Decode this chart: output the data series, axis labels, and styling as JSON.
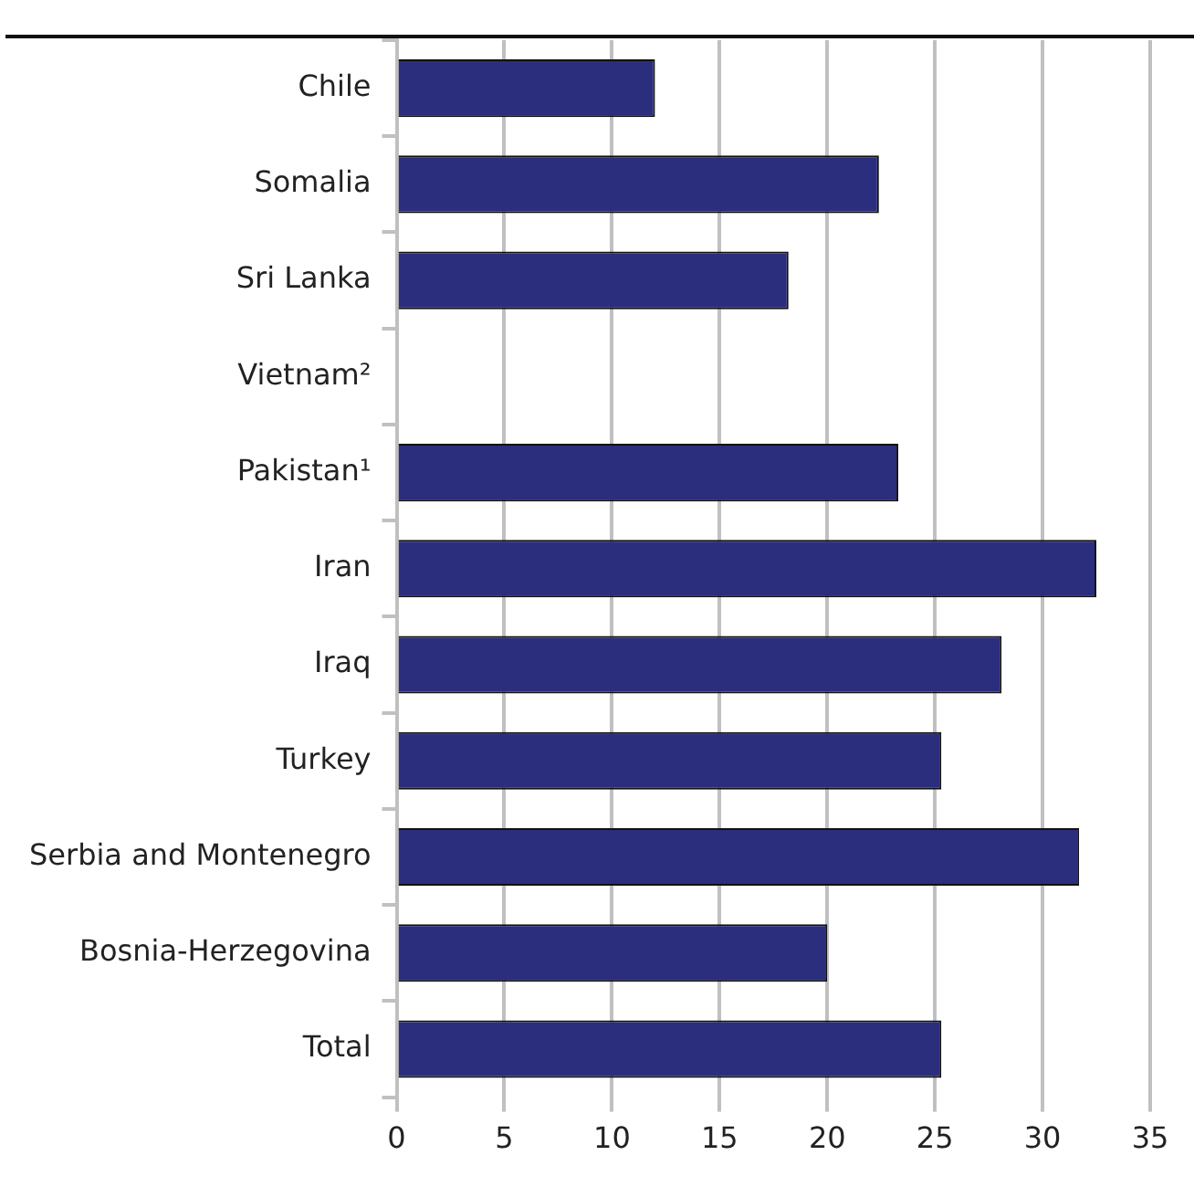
{
  "chart_data": {
    "type": "bar",
    "orientation": "horizontal",
    "categories": [
      "Chile",
      "Somalia",
      "Sri Lanka",
      "Vietnam²",
      "Pakistan¹",
      "Iran",
      "Iraq",
      "Turkey",
      "Serbia and Montenegro",
      "Bosnia-Herzegovina",
      "Total"
    ],
    "values": [
      12.0,
      22.4,
      18.2,
      null,
      23.3,
      32.5,
      28.1,
      25.3,
      31.7,
      20.0,
      25.3
    ],
    "color": "#2a2e7c",
    "xlim": [
      0,
      35
    ],
    "xticks": [
      0,
      5,
      10,
      15,
      20,
      25,
      30,
      35
    ],
    "grid": "x",
    "legend": false
  }
}
